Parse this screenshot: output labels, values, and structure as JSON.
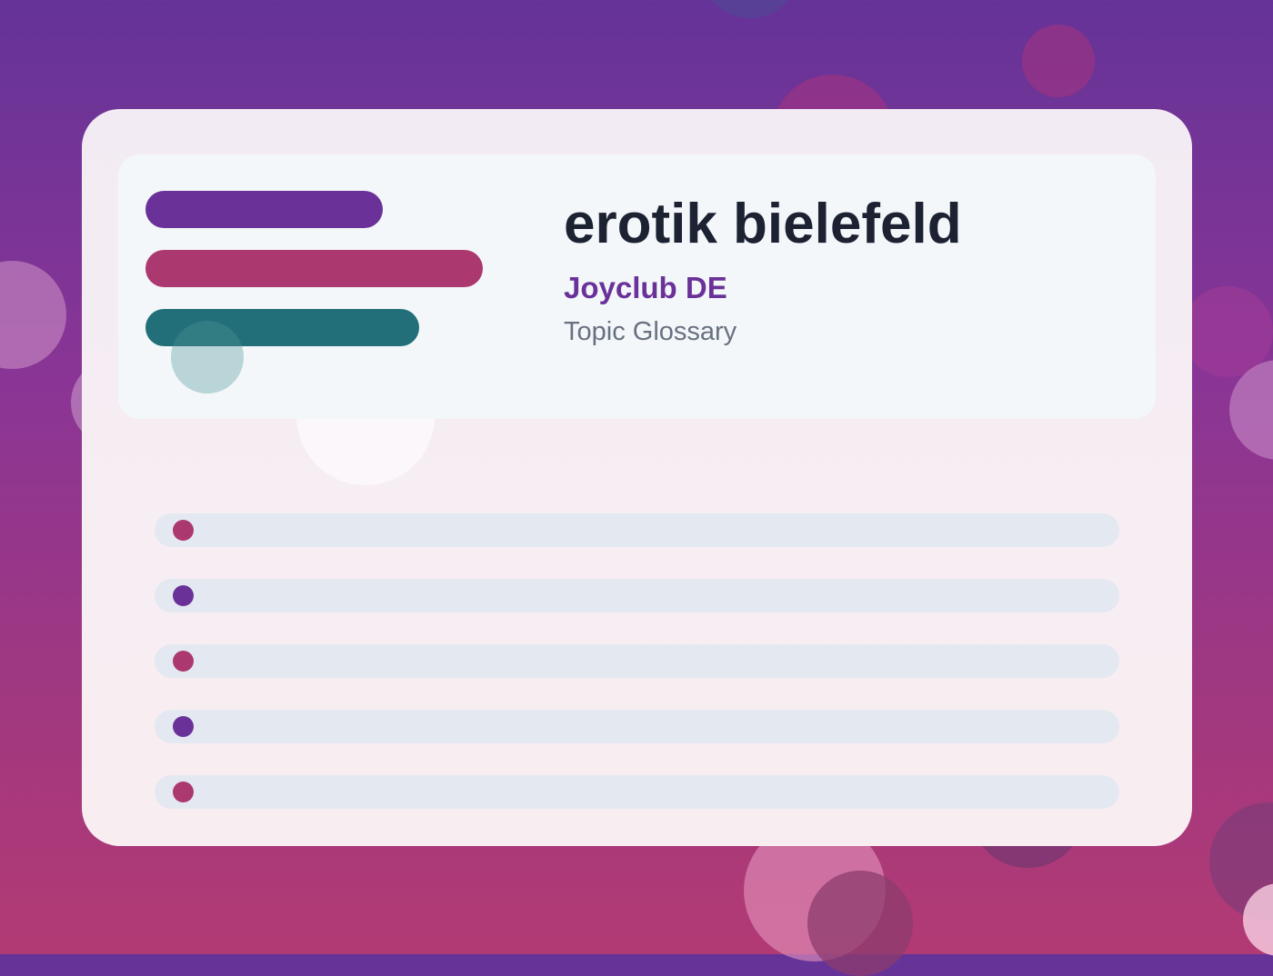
{
  "card": {
    "title": "erotik bielefeld",
    "brand": "Joyclub DE",
    "subtitle": "Topic Glossary"
  },
  "colors": {
    "background_top": "#653398",
    "background_bottom": "#b23a74",
    "accent_purple": "#6a3299",
    "accent_magenta": "#ac3870",
    "accent_teal": "#226f7a",
    "title_text": "#1c2232",
    "muted_text": "#697181",
    "list_item_bg": "#e4e8f1"
  },
  "header_bars": [
    {
      "name": "purple-bar",
      "color": "#6a3299"
    },
    {
      "name": "magenta-bar",
      "color": "#ac3870"
    },
    {
      "name": "teal-bar",
      "color": "#226f7a"
    }
  ],
  "list_items": [
    {
      "dot_color": "#ac3870"
    },
    {
      "dot_color": "#6a3299"
    },
    {
      "dot_color": "#ac3870"
    },
    {
      "dot_color": "#6a3299"
    },
    {
      "dot_color": "#ac3870"
    }
  ]
}
